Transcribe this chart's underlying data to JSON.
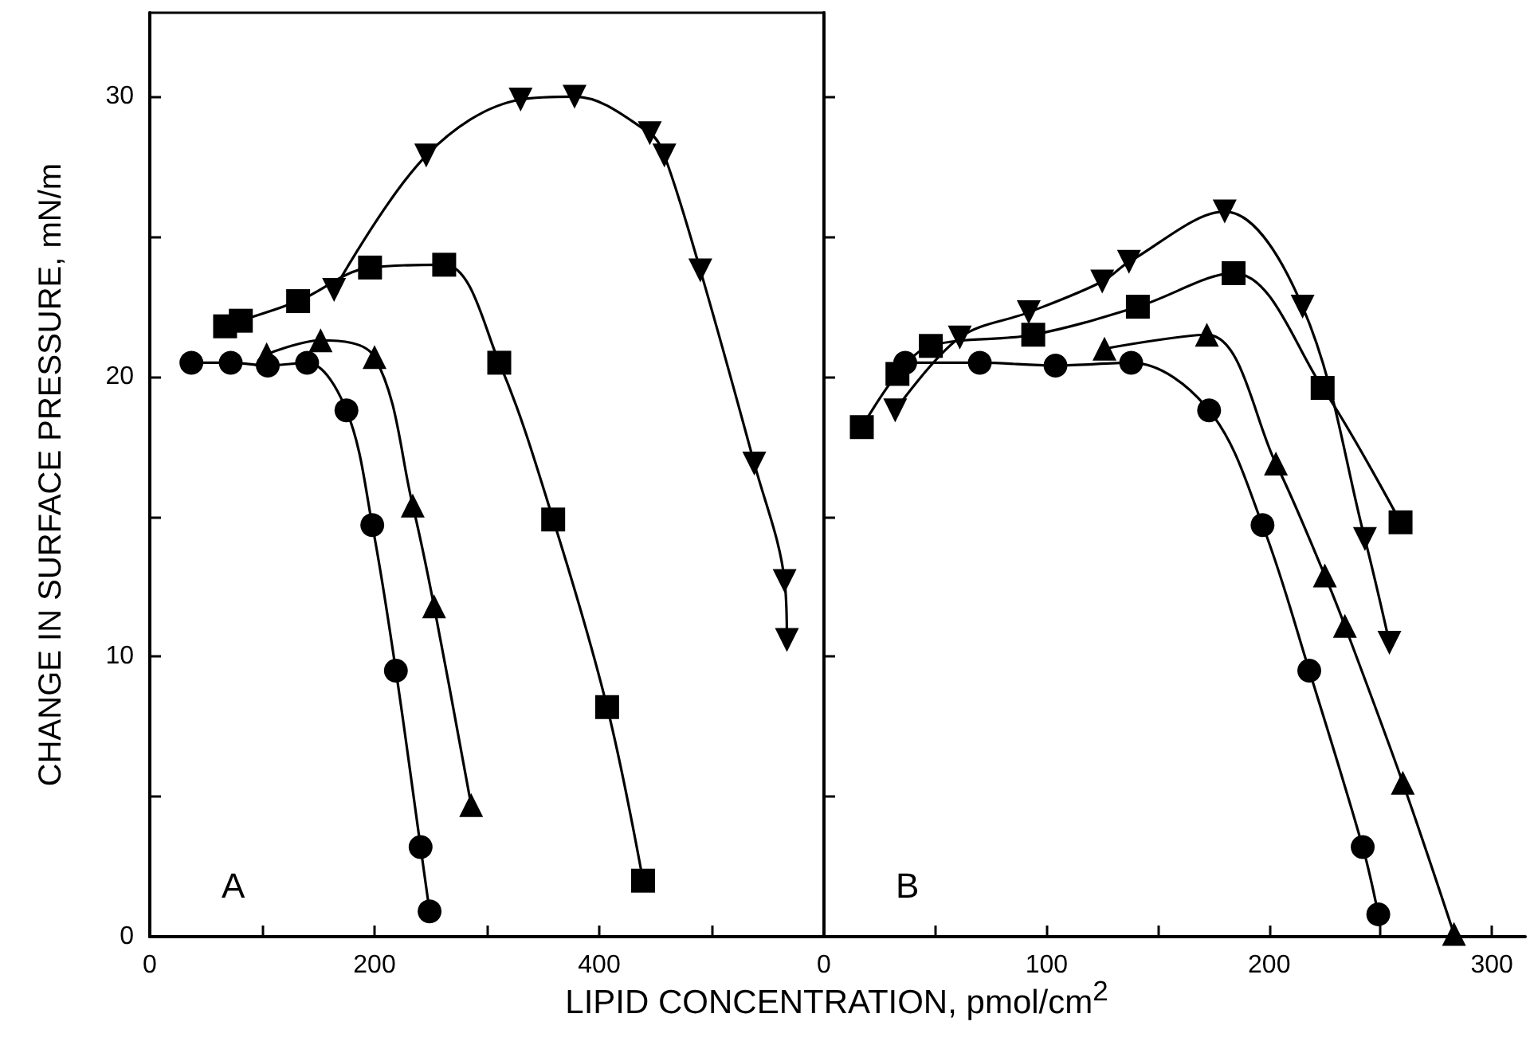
{
  "chart_data": [
    {
      "type": "line",
      "ylabel": "CHANGE IN SURFACE PRESSURE, mN/m",
      "xlabel": "LIPID CONCENTRATION, pmol/cm$^{2}$",
      "annotations": [
        "A"
      ],
      "xlim": [
        0,
        600
      ],
      "xticks": [
        0,
        {
          "value": 100,
          "label": null
        },
        200,
        {
          "value": 300,
          "label": null
        },
        400,
        {
          "value": 500,
          "label": null
        }
      ],
      "ylim": [
        0,
        33
      ],
      "yticks": [
        0,
        {
          "value": 5,
          "label": null
        },
        10,
        {
          "value": 15,
          "label": null
        },
        20,
        {
          "value": 25,
          "label": null
        },
        30
      ],
      "grid": false,
      "line_style": "solid",
      "series": [
        {
          "color": "#000000",
          "marker": "circle",
          "x": [
            37,
            72,
            105,
            140,
            175,
            198,
            219,
            241,
            249
          ],
          "values": [
            20.5,
            20.5,
            20.4,
            20.5,
            18.8,
            14.7,
            9.5,
            3.2,
            0.9
          ]
        },
        {
          "color": "#000000",
          "marker": "triangle",
          "x": [
            104,
            152,
            200,
            234,
            253,
            286
          ],
          "values": [
            20.8,
            21.3,
            20.7,
            15.4,
            11.8,
            4.7
          ]
        },
        {
          "color": "#000000",
          "marker": "square",
          "x": [
            67,
            81,
            132,
            196,
            262,
            311,
            359,
            407,
            439
          ],
          "values": [
            21.8,
            22.0,
            22.7,
            23.9,
            24.0,
            20.5,
            14.9,
            8.2,
            2.0
          ]
        },
        {
          "color": "#000000",
          "marker": "triangle-down",
          "x": [
            164,
            246,
            330,
            378,
            445,
            458,
            490,
            538,
            565,
            567
          ],
          "values": [
            23.1,
            27.9,
            29.9,
            30.0,
            28.7,
            27.9,
            23.8,
            16.9,
            12.7,
            10.6
          ]
        }
      ]
    },
    {
      "type": "line",
      "annotations": [
        "B"
      ],
      "xlim": [
        0,
        315
      ],
      "xticks": [
        0,
        {
          "value": 50,
          "label": null
        },
        100,
        {
          "value": 150,
          "label": null
        },
        200,
        {
          "value": 250,
          "label": null
        },
        300
      ],
      "ylim": [
        0,
        33
      ],
      "yticks": [
        0,
        {
          "value": 5,
          "label": null
        },
        10,
        {
          "value": 15,
          "label": null
        },
        20,
        {
          "value": 25,
          "label": null
        },
        30
      ],
      "tick_labels": "x",
      "grid": false,
      "line_style": "solid",
      "series": [
        {
          "color": "#000000",
          "marker": "circle",
          "x": [
            36.5,
            70,
            104,
            138,
            173,
            197,
            218,
            242,
            249
          ],
          "values": [
            20.5,
            20.5,
            20.4,
            20.5,
            18.8,
            14.7,
            9.5,
            3.2,
            0.8
          ]
        },
        {
          "color": "#000000",
          "marker": "triangle",
          "x": [
            126,
            172,
            203,
            225,
            234,
            260,
            283
          ],
          "values": [
            21.0,
            21.5,
            16.9,
            12.9,
            11.1,
            5.5,
            0.1
          ]
        },
        {
          "color": "#000000",
          "marker": "square",
          "x": [
            17,
            33,
            48,
            94,
            141,
            184,
            224,
            259
          ],
          "values": [
            18.2,
            20.1,
            21.1,
            21.5,
            22.5,
            23.7,
            19.6,
            14.8
          ]
        },
        {
          "color": "#000000",
          "marker": "triangle-down",
          "x": [
            32,
            61,
            92,
            125,
            137,
            180,
            215,
            243,
            254
          ],
          "values": [
            18.8,
            21.4,
            22.3,
            23.4,
            24.1,
            25.9,
            22.5,
            14.2,
            10.5
          ]
        }
      ]
    }
  ]
}
